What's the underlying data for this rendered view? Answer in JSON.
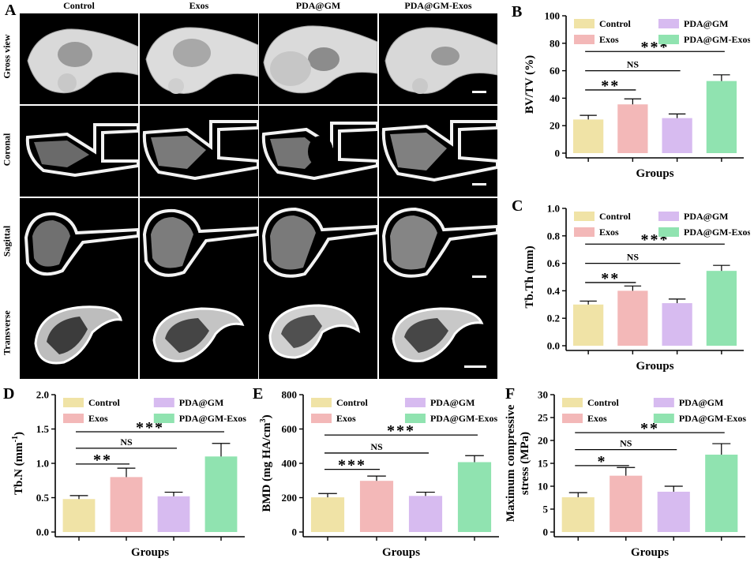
{
  "figure": {
    "panel_labels": {
      "a": "A",
      "b": "B",
      "c": "C",
      "d": "D",
      "e": "E",
      "f": "F"
    },
    "microct": {
      "columns": [
        "Control",
        "Exos",
        "PDA@GM",
        "PDA@GM-Exos"
      ],
      "rows": [
        "Gross view",
        "Coronal",
        "Sagittal",
        "Transverse"
      ]
    }
  },
  "chart_data": [
    {
      "id": "B",
      "type": "bar",
      "categories": [
        "Control",
        "Exos",
        "PDA@GM",
        "PDA@GM-Exos"
      ],
      "values": [
        24.5,
        35.5,
        25.5,
        52.5
      ],
      "errors": [
        3,
        4,
        3,
        4.5
      ],
      "colors": [
        "#f0e3a6",
        "#f3b8b8",
        "#d7bbf0",
        "#90e3b0"
      ],
      "title": "",
      "xlabel": "Groups",
      "ylabel": "BV/TV (%)",
      "ylim": [
        0,
        100
      ],
      "yticks": [
        0,
        20,
        40,
        60,
        80,
        100
      ],
      "tick_labels": [
        "0",
        "20",
        "40",
        "60",
        "80",
        "100"
      ],
      "legend": [
        "Control",
        "Exos",
        "PDA@GM",
        "PDA@GM-Exos"
      ],
      "comparisons": [
        {
          "from": 0,
          "to": 1,
          "at": 46,
          "label": "**"
        },
        {
          "from": 0,
          "to": 2,
          "at": 60,
          "label": "NS"
        },
        {
          "from": 0,
          "to": 3,
          "at": 74,
          "label": "***"
        }
      ]
    },
    {
      "id": "C",
      "type": "bar",
      "categories": [
        "Control",
        "Exos",
        "PDA@GM",
        "PDA@GM-Exos"
      ],
      "values": [
        0.3,
        0.4,
        0.31,
        0.545
      ],
      "errors": [
        0.025,
        0.035,
        0.03,
        0.04
      ],
      "colors": [
        "#f0e3a6",
        "#f3b8b8",
        "#d7bbf0",
        "#90e3b0"
      ],
      "title": "",
      "xlabel": "Groups",
      "ylabel": "Tb.Th (mm)",
      "ylim": [
        0,
        1.0
      ],
      "yticks": [
        0,
        0.2,
        0.4,
        0.6,
        0.8,
        1.0
      ],
      "tick_labels": [
        "0.0",
        "0.2",
        "0.4",
        "0.6",
        "0.8",
        "1.0"
      ],
      "legend": [
        "Control",
        "Exos",
        "PDA@GM",
        "PDA@GM-Exos"
      ],
      "comparisons": [
        {
          "from": 0,
          "to": 1,
          "at": 0.46,
          "label": "**"
        },
        {
          "from": 0,
          "to": 2,
          "at": 0.6,
          "label": "NS"
        },
        {
          "from": 0,
          "to": 3,
          "at": 0.74,
          "label": "***"
        }
      ]
    },
    {
      "id": "D",
      "type": "bar",
      "categories": [
        "Control",
        "Exos",
        "PDA@GM",
        "PDA@GM-Exos"
      ],
      "values": [
        0.48,
        0.8,
        0.52,
        1.1
      ],
      "errors": [
        0.05,
        0.13,
        0.06,
        0.19
      ],
      "colors": [
        "#f0e3a6",
        "#f3b8b8",
        "#d7bbf0",
        "#90e3b0"
      ],
      "title": "",
      "xlabel": "Groups",
      "ylabel": "Tb.N (mm-1)",
      "ylim": [
        0,
        2.0
      ],
      "yticks": [
        0,
        0.5,
        1.0,
        1.5,
        2.0
      ],
      "tick_labels": [
        "0.0",
        "0.5",
        "1.0",
        "1.5",
        "2.0"
      ],
      "legend": [
        "Control",
        "Exos",
        "PDA@GM",
        "PDA@GM-Exos"
      ],
      "comparisons": [
        {
          "from": 0,
          "to": 1,
          "at": 0.99,
          "label": "**"
        },
        {
          "from": 0,
          "to": 2,
          "at": 1.22,
          "label": "NS"
        },
        {
          "from": 0,
          "to": 3,
          "at": 1.46,
          "label": "***"
        }
      ]
    },
    {
      "id": "E",
      "type": "bar",
      "categories": [
        "Control",
        "Exos",
        "PDA@GM",
        "PDA@GM-Exos"
      ],
      "values": [
        202,
        298,
        210,
        407
      ],
      "errors": [
        22,
        28,
        22,
        38
      ],
      "colors": [
        "#f0e3a6",
        "#f3b8b8",
        "#d7bbf0",
        "#90e3b0"
      ],
      "title": "",
      "xlabel": "Groups",
      "ylabel": "BMD (mg HA/cm3)",
      "ylim": [
        0,
        800
      ],
      "yticks": [
        0,
        200,
        400,
        600,
        800
      ],
      "tick_labels": [
        "0",
        "200",
        "400",
        "600",
        "800"
      ],
      "legend": [
        "Control",
        "Exos",
        "PDA@GM",
        "PDA@GM-Exos"
      ],
      "comparisons": [
        {
          "from": 0,
          "to": 1,
          "at": 365,
          "label": "***"
        },
        {
          "from": 0,
          "to": 2,
          "at": 460,
          "label": "NS"
        },
        {
          "from": 0,
          "to": 3,
          "at": 565,
          "label": "***"
        }
      ]
    },
    {
      "id": "F",
      "type": "bar",
      "categories": [
        "Control",
        "Exos",
        "PDA@GM",
        "PDA@GM-Exos"
      ],
      "values": [
        7.6,
        12.3,
        8.8,
        16.9
      ],
      "errors": [
        1.0,
        1.8,
        1.2,
        2.4
      ],
      "colors": [
        "#f0e3a6",
        "#f3b8b8",
        "#d7bbf0",
        "#90e3b0"
      ],
      "title": "",
      "xlabel": "Groups",
      "ylabel": "Maximum compressive stress (MPa)",
      "ylim": [
        0,
        30
      ],
      "yticks": [
        0,
        5,
        10,
        15,
        20,
        25,
        30
      ],
      "tick_labels": [
        "0",
        "5",
        "10",
        "15",
        "20",
        "25",
        "30"
      ],
      "legend": [
        "Control",
        "Exos",
        "PDA@GM",
        "PDA@GM-Exos"
      ],
      "comparisons": [
        {
          "from": 0,
          "to": 1,
          "at": 14.5,
          "label": "*"
        },
        {
          "from": 0,
          "to": 2,
          "at": 18,
          "label": "NS"
        },
        {
          "from": 0,
          "to": 3,
          "at": 21.7,
          "label": "**"
        }
      ]
    }
  ]
}
